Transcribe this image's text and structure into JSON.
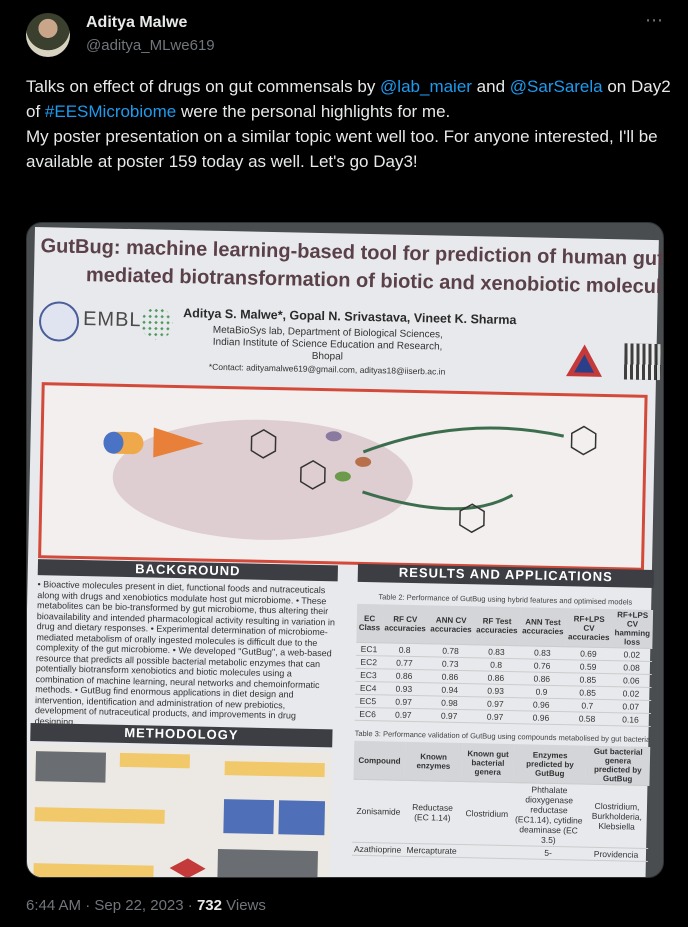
{
  "author": {
    "name": "Aditya Malwe",
    "handle": "@aditya_MLwe619"
  },
  "more_icon": "⋯",
  "tweet": {
    "p1_pre": "Talks on effect of drugs on gut commensals by ",
    "mention1": "@lab_maier",
    "p1_mid": " and ",
    "mention2": "@SarSarela",
    "p1_mid2": " on Day2 of ",
    "hashtag": "#EESMicrobiome",
    "p1_post": " were the personal highlights for me.",
    "p2": "My poster presentation on a similar topic went well too. For anyone interested, I'll be available at poster 159 today as well. Let's go Day3!"
  },
  "poster": {
    "title_line1": "GutBug: machine learning-based tool for prediction of human gut bacte",
    "title_line2": "mediated biotransformation of biotic and xenobiotic molecules",
    "authors": "Aditya S. Malwe*, Gopal N. Srivastava, Vineet K. Sharma",
    "aff1": "MetaBioSys lab, Department of Biological Sciences,",
    "aff2": "Indian Institute of Science Education and Research, Bhopal",
    "aff3": "*Contact: adityamalwe619@gmail.com, adityas18@iiserb.ac.in",
    "embl": "EMBL",
    "background_head": "BACKGROUND",
    "background_text": "• Bioactive molecules present in diet, functional foods and nutraceuticals along with drugs and xenobiotics modulate host gut microbiome. • These metabolites can be bio-transformed by gut microbiome, thus altering their bioavailability and intended pharmacological activity resulting in variation in drug and dietary responses. • Experimental determination of microbiome-mediated metabolism of orally ingested molecules is difficult due to the complexity of the gut microbiome. • We developed \"GutBug\", a web-based resource that predicts all possible bacterial metabolic enzymes that can potentially biotransform xenobiotics and biotic molecules using a combination of machine learning, neural networks and chemoinformatic methods. • GutBug find enormous applications in diet design and intervention, identification and administration of new prebiotics, development of nutraceutical products, and improvements in drug designing.",
    "methodology_head": "METHODOLOGY",
    "results_head": "RESULTS AND APPLICATIONS",
    "table2_caption": "Table 2: Performance of GutBug using hybrid features and optimised models",
    "table2_headers": [
      "EC Class",
      "RF CV accuracies",
      "ANN CV accuracies",
      "RF Test accuracies",
      "ANN Test accuracies",
      "RF+LPS CV accuracies",
      "RF+LPS CV hamming loss"
    ],
    "table2_rows": [
      [
        "EC1",
        "0.8",
        "0.78",
        "0.83",
        "0.83",
        "0.69",
        "0.02"
      ],
      [
        "EC2",
        "0.77",
        "0.73",
        "0.8",
        "0.76",
        "0.59",
        "0.08"
      ],
      [
        "EC3",
        "0.86",
        "0.86",
        "0.86",
        "0.86",
        "0.85",
        "0.06"
      ],
      [
        "EC4",
        "0.93",
        "0.94",
        "0.93",
        "0.9",
        "0.85",
        "0.02"
      ],
      [
        "EC5",
        "0.97",
        "0.98",
        "0.97",
        "0.96",
        "0.7",
        "0.07"
      ],
      [
        "EC6",
        "0.97",
        "0.97",
        "0.97",
        "0.96",
        "0.58",
        "0.16"
      ]
    ],
    "table3_caption": "Table 3: Performance validation of GutBug using compounds metabolised by gut bacteria",
    "table3_headers": [
      "Compound",
      "Known enzymes",
      "Known gut bacterial genera",
      "Enzymes predicted by GutBug",
      "Gut bacterial genera predicted by GutBug"
    ],
    "table3_row1": [
      "Zonisamide",
      "Reductase (EC 1.14)",
      "Clostridium",
      "Phthalate dioxygenase reductase (EC1.14), cytidine deaminase (EC 3.5)",
      "Clostridium, Burkholderia, Klebsiella"
    ],
    "table3_row2": [
      "Azathioprine",
      "Mercapturate",
      "",
      "5-",
      "Providencia"
    ]
  },
  "meta": {
    "time": "6:44 AM · Sep 22, 2023 · ",
    "views_count": "732",
    "views_label": " Views"
  }
}
